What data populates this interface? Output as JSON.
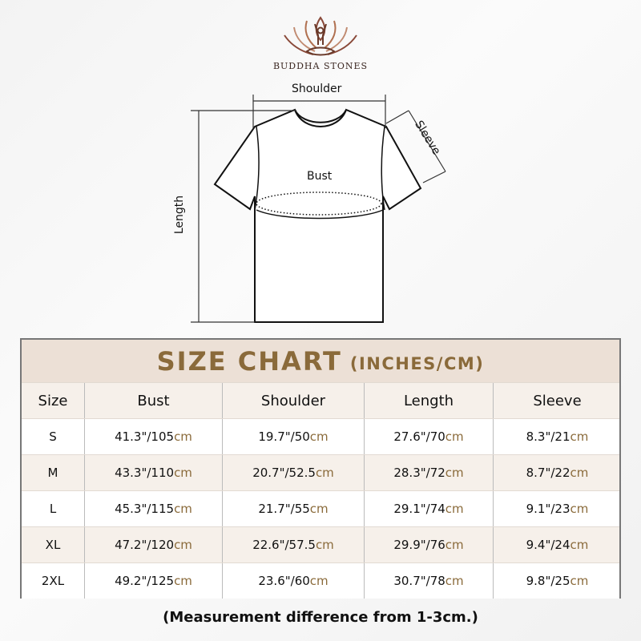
{
  "brand": {
    "name": "BUDDHA STONES",
    "logo_icon": "lotus-meditation-icon"
  },
  "diagram": {
    "shoulder": "Shoulder",
    "sleeve": "Sleeve",
    "bust": "Bust",
    "length": "Length"
  },
  "table": {
    "title": "SIZE CHART",
    "title_units": "(INCHES/CM)",
    "columns": [
      "Size",
      "Bust",
      "Shoulder",
      "Length",
      "Sleeve"
    ],
    "unit_suffix": "cm",
    "rows": [
      {
        "size": "S",
        "bust": "41.3\"/105",
        "shoulder": "19.7\"/50",
        "length": "27.6\"/70",
        "sleeve": "8.3\"/21"
      },
      {
        "size": "M",
        "bust": "43.3\"/110",
        "shoulder": "20.7\"/52.5",
        "length": "28.3\"/72",
        "sleeve": "8.7\"/22"
      },
      {
        "size": "L",
        "bust": "45.3\"/115",
        "shoulder": "21.7\"/55",
        "length": "29.1\"/74",
        "sleeve": "9.1\"/23"
      },
      {
        "size": "XL",
        "bust": "47.2\"/120",
        "shoulder": "22.6\"/57.5",
        "length": "29.9\"/76",
        "sleeve": "9.4\"/24"
      },
      {
        "size": "2XL",
        "bust": "49.2\"/125",
        "shoulder": "23.6\"/60",
        "length": "30.7\"/78",
        "sleeve": "9.8\"/25"
      }
    ]
  },
  "note": "(Measurement difference from 1-3cm.)",
  "colors": {
    "accent": "#8a6a3a",
    "header_bg": "#ece0d6",
    "alt_row": "#f6f0ea"
  }
}
